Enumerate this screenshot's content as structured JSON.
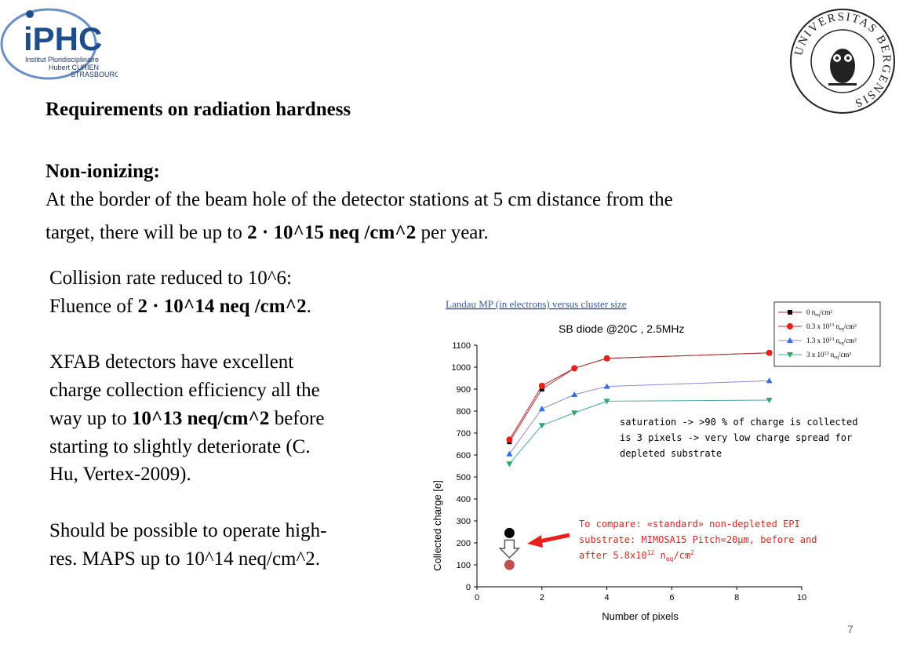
{
  "logos": {
    "left": {
      "name": "iPHC",
      "lines": [
        "Institut Pluridisciplinaire",
        "Hubert CURIEN",
        "STRASBOURG"
      ]
    },
    "right": {
      "name": "UNIVERSITAS BERGENSIS"
    }
  },
  "title": "Requirements on radiation hardness",
  "subtitle": "Non-ionizing:",
  "body": {
    "line1": "At the border of the beam hole of the detector stations at 5 cm distance from the",
    "line2_pre": "target, there will be up to ",
    "line2_bold": "2 · 10^15 neq /cm^2",
    "line2_post": " per year."
  },
  "left_block": {
    "p1_l1": "Collision rate reduced to 10^6:",
    "p1_l2_pre": "Fluence of ",
    "p1_l2_bold": "2 · 10^14 neq /cm^2",
    "p1_l2_post": ".",
    "p2_l1": "XFAB detectors have excellent",
    "p2_l2": "charge collection efficiency all the",
    "p2_l3_pre": "way up to ",
    "p2_l3_bold": "10^13 neq/cm^2",
    "p2_l3_post": " before",
    "p2_l4": "starting to  slightly deteriorate (C.",
    "p2_l5": "Hu, Vertex-2009).",
    "p3_l1": "Should be possible to operate high-",
    "p3_l2": "res. MAPS up to 10^14 neq/cm^2."
  },
  "chart_data": {
    "type": "line",
    "header": "Landau MP (in electrons) versus cluster size",
    "title": "SB diode @20C , 2.5MHz",
    "xlabel": "Number of pixels",
    "ylabel": "Collected charge [e]",
    "xlim": [
      0,
      10
    ],
    "ylim": [
      0,
      1100
    ],
    "xticks": [
      0,
      2,
      4,
      6,
      8,
      10
    ],
    "yticks": [
      0,
      100,
      200,
      300,
      400,
      500,
      600,
      700,
      800,
      900,
      1000,
      1100
    ],
    "x": [
      1,
      2,
      3,
      4,
      9
    ],
    "series": [
      {
        "name_main": "0 n",
        "name_sub": "eq",
        "name_unit": "/cm²",
        "name_exp": "",
        "marker": "square",
        "color": "#000000",
        "line_color": "#b03030",
        "values": [
          660,
          900,
          995,
          1040,
          1065
        ]
      },
      {
        "name_main": "0.3 x 10",
        "name_exp": "13",
        "name_mid": " n",
        "name_sub": "eq",
        "name_unit": "/cm²",
        "marker": "circle",
        "color": "#e8201c",
        "line_color": "#b03030",
        "values": [
          670,
          915,
          995,
          1040,
          1065
        ]
      },
      {
        "name_main": "1.3 x 10",
        "name_exp": "13",
        "name_mid": " n",
        "name_sub": "eq",
        "name_unit": "/cm²",
        "marker": "triangle-up",
        "color": "#2f6fe0",
        "line_color": "#8a8ad8",
        "values": [
          605,
          810,
          875,
          912,
          938
        ]
      },
      {
        "name_main": "3    x 10",
        "name_exp": "13",
        "name_mid": " n",
        "name_sub": "eq",
        "name_unit": "/cm²",
        "marker": "triangle-down",
        "color": "#2aa86a",
        "line_color": "#4aa8b0",
        "values": [
          560,
          735,
          792,
          845,
          850
        ]
      }
    ],
    "extra_points": [
      {
        "x": 1,
        "y": 245,
        "color": "#000000"
      },
      {
        "x": 1,
        "y": 100,
        "color": "#c0504d"
      }
    ],
    "annotations": {
      "saturation": [
        "saturation -> >90 % of charge is collected",
        "is 3 pixels -> very low charge spread for",
        "depleted substrate"
      ],
      "compare_l1": "To compare: «standard» non-depleted EPI",
      "compare_l2": "substrate: MIMOSA15 Pitch=20µm, before and",
      "compare_l3_pre": "after 5.8x10",
      "compare_l3_exp": "12",
      "compare_l3_mid": " n",
      "compare_l3_sub": "eq",
      "compare_l3_post": "/cm",
      "compare_l3_exp2": "2"
    },
    "colors": {
      "annotation_red": "#e8201c",
      "header_blue": "#2e5aa8"
    }
  },
  "page_number": "7"
}
